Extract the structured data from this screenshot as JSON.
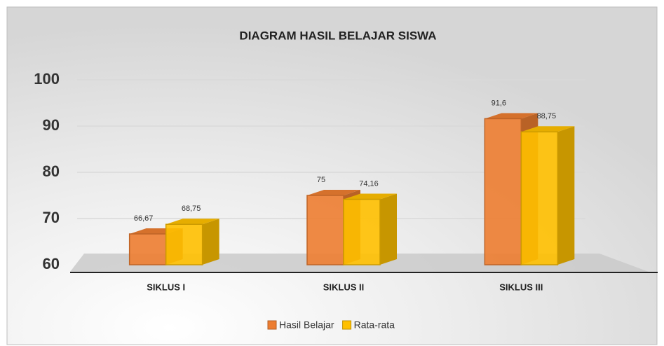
{
  "chart_data": {
    "type": "bar3d",
    "title": "DIAGRAM HASIL BELAJAR SISWA",
    "categories": [
      "SIKLUS I",
      "SIKLUS II",
      "SIKLUS III"
    ],
    "series": [
      {
        "name": "Hasil Belajar",
        "color": "#ED7D31",
        "values": [
          66.67,
          75,
          91.6
        ],
        "value_labels": [
          "66,67",
          "75",
          "91,6"
        ]
      },
      {
        "name": "Rata-rata",
        "color": "#FFC000",
        "values": [
          68.75,
          74.16,
          88.75
        ],
        "value_labels": [
          "68,75",
          "74,16",
          "88,75"
        ]
      }
    ],
    "ylim": [
      60,
      100
    ],
    "yticks": [
      60,
      70,
      80,
      90,
      100
    ],
    "grid": true,
    "legend": "bottom"
  }
}
